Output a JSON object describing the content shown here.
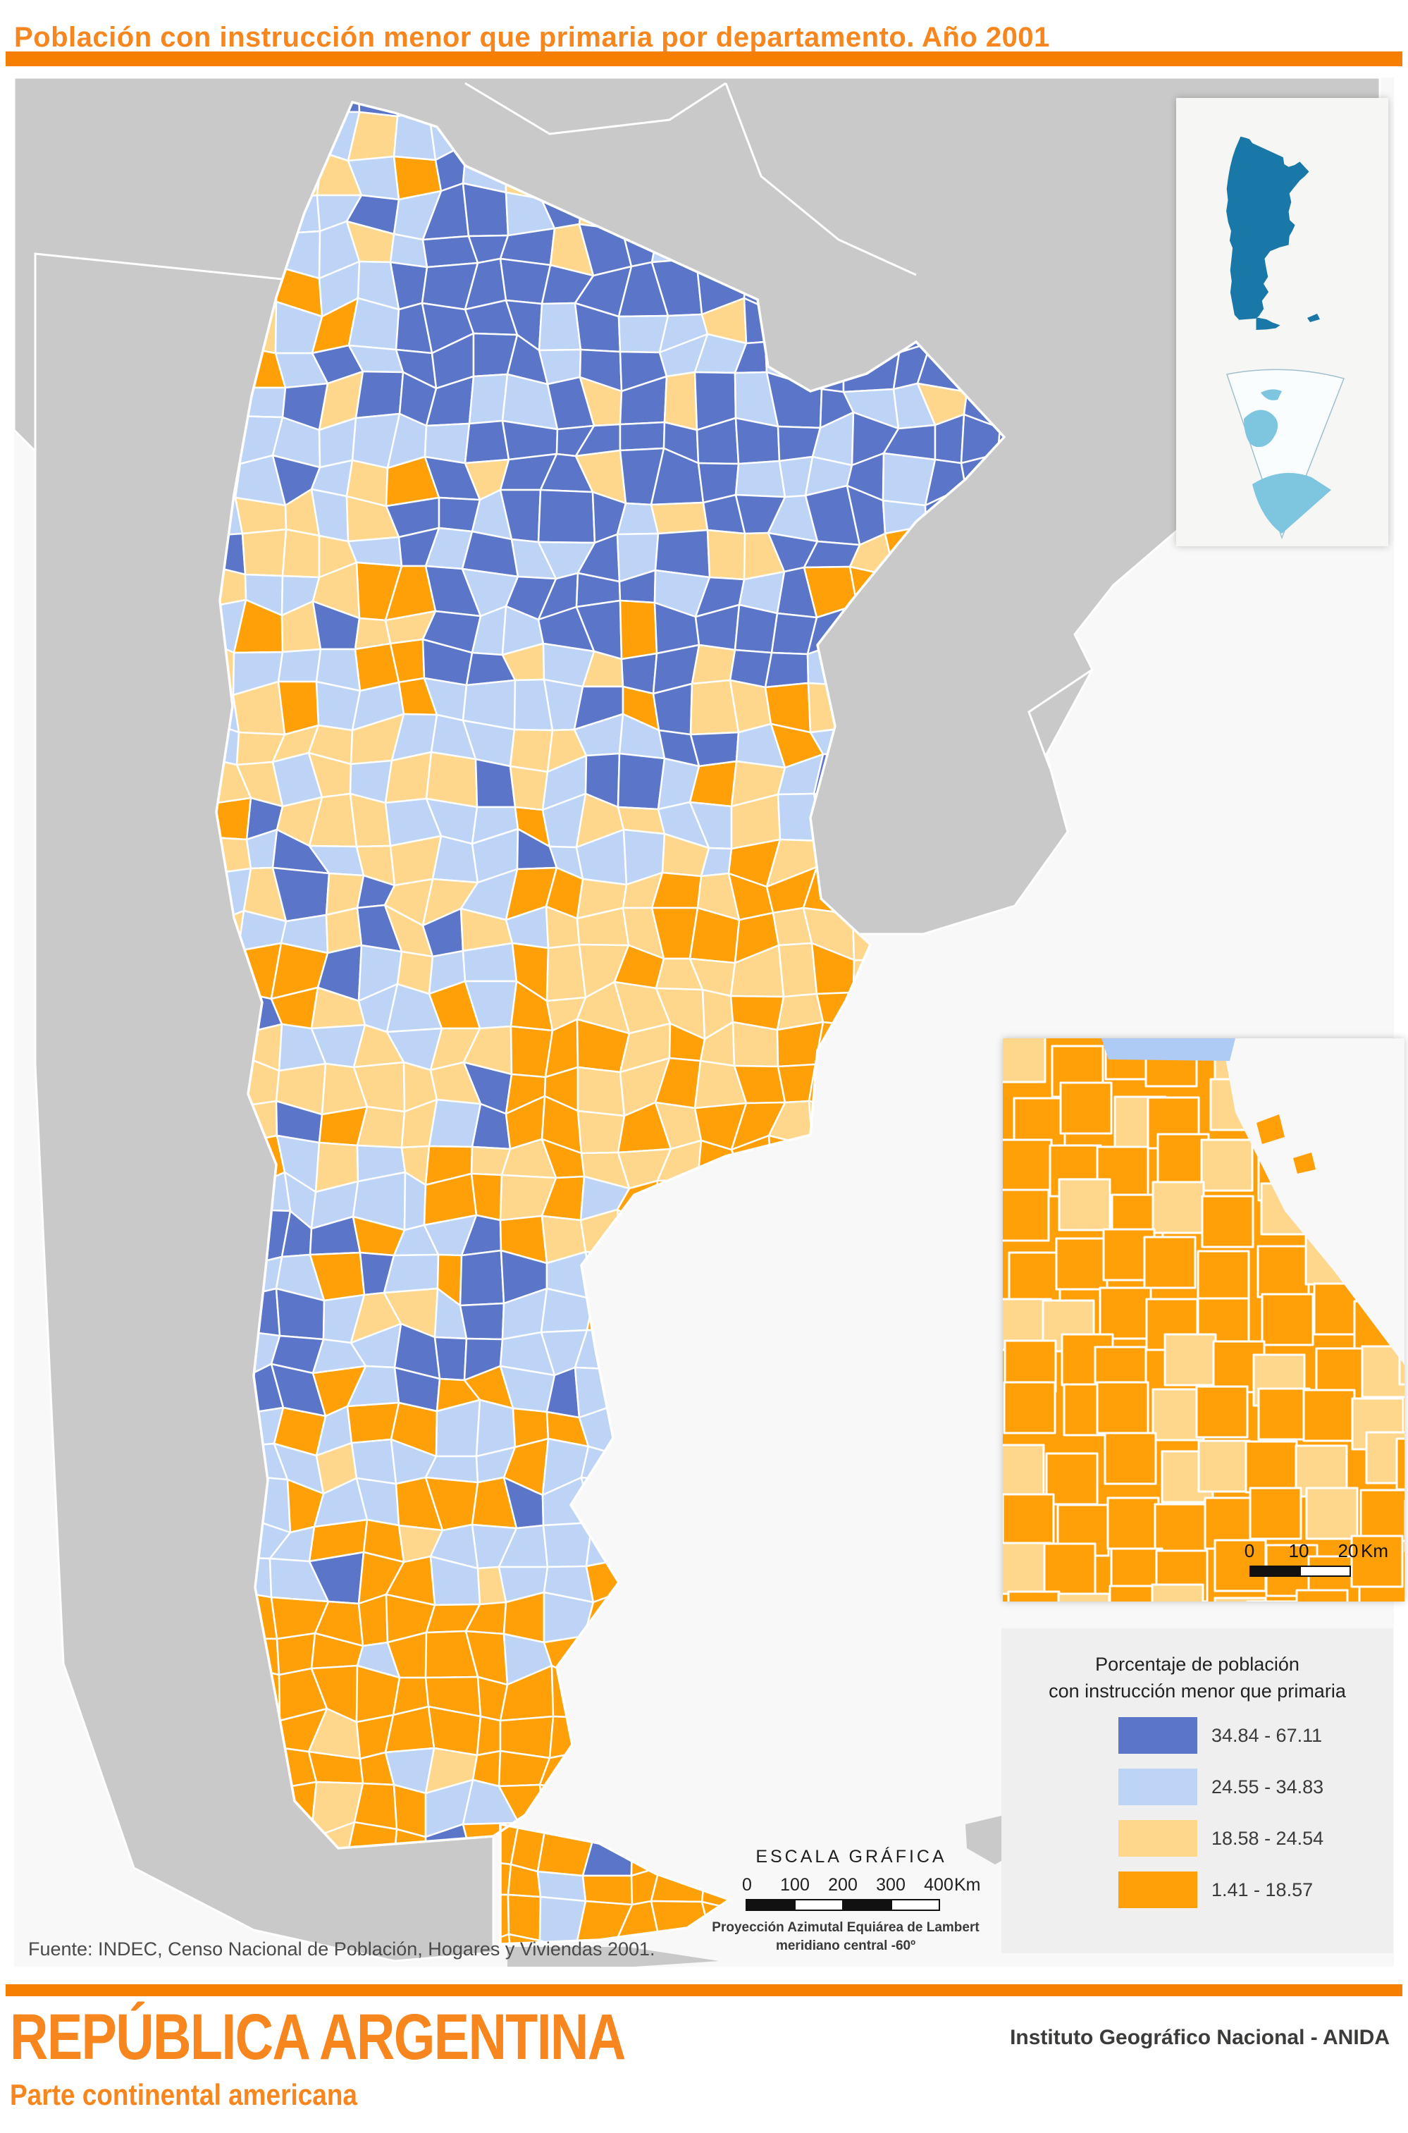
{
  "header": {
    "title": "Población con instrucción menor que primaria por departamento. Año 2001"
  },
  "legend": {
    "title_line1": "Porcentaje de población",
    "title_line2": "con instrucción menor que primaria",
    "classes": [
      {
        "range": "34.84 - 67.11",
        "color": "#5B76C8"
      },
      {
        "range": "24.55 - 34.83",
        "color": "#BDD4F6"
      },
      {
        "range": "18.58 - 24.54",
        "color": "#FED78C"
      },
      {
        "range": "1.41 - 18.57",
        "color": "#FFA008"
      }
    ]
  },
  "scale": {
    "title": "ESCALA GRÁFICA",
    "ticks": [
      "0",
      "100",
      "200",
      "300",
      "400"
    ],
    "unit": "Km",
    "projection_line1": "Proyección Azimutal Equiárea de Lambert",
    "projection_line2": "meridiano central -60º"
  },
  "detail_inset": {
    "ticks": [
      "0",
      "10",
      "20"
    ],
    "unit": "Km"
  },
  "source": "Fuente: INDEC, Censo Nacional de Población, Hogares y Viviendas 2001.",
  "footer": {
    "title": "REPÚBLICA ARGENTINA",
    "subtitle": "Parte continental americana",
    "agency": "Instituto Geográfico Nacional - ANIDA"
  },
  "colors": {
    "title_orange": "#F6861D",
    "bar_orange": "#F67E00",
    "ocean": "#F8F8F8",
    "neighbor": "#C9C9C9",
    "class1": "#5B76C8",
    "class2": "#BDD4F6",
    "class3": "#FED78C",
    "class4": "#FFA008",
    "inset_country": "#1A78A8",
    "inset_antarctica": "#7EC5E0",
    "water_blue": "#AECBF5",
    "legend_bg": "#EFEFEF",
    "scalebar_black": "#111111",
    "text_dark": "#3B3B3A"
  }
}
